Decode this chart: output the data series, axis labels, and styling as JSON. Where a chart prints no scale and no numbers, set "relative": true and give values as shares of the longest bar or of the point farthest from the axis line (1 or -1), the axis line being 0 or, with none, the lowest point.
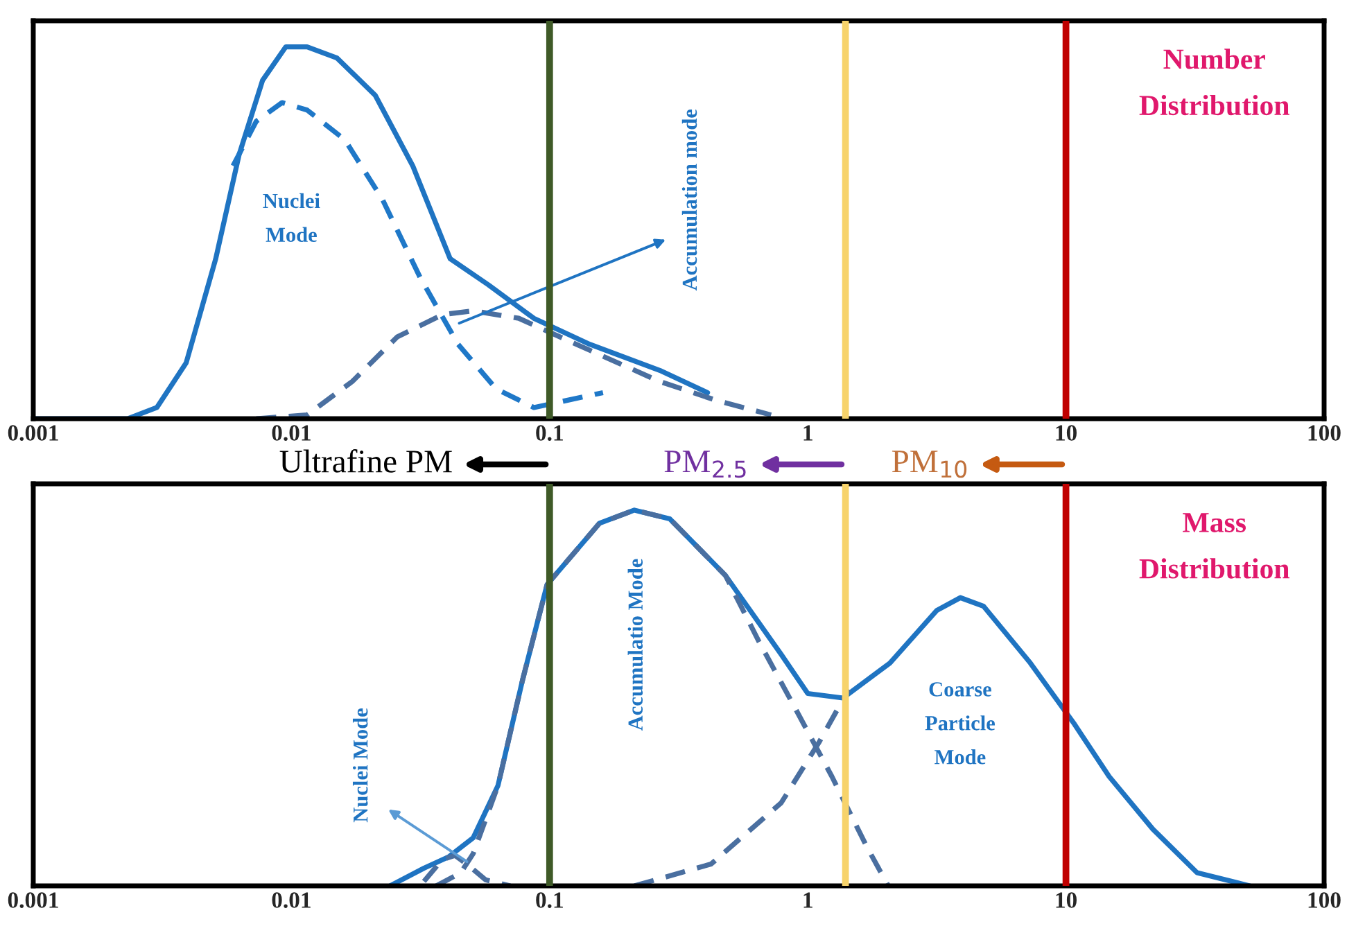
{
  "chart_data": [
    {
      "type": "line",
      "title": "Number\nDistribution",
      "relative": true,
      "xlim": [
        0.001,
        100
      ],
      "xticks": [
        0.001,
        0.01,
        0.1,
        1,
        10,
        100
      ],
      "log": "x",
      "tick_labels": "x",
      "x": [
        0.001,
        0.00232,
        0.00301,
        0.00391,
        0.00509,
        0.00627,
        0.00773,
        0.00951,
        0.0115,
        0.015,
        0.0211,
        0.0295,
        0.0412,
        0.0579,
        0.0869,
        0.143,
        0.267,
        0.409
      ],
      "series": [
        {
          "color": "#1f74c2",
          "line_style": "solid",
          "values": [
            0,
            0,
            0.03,
            0.15,
            0.43,
            0.71,
            0.91,
            1.0,
            1.0,
            0.97,
            0.87,
            0.68,
            0.43,
            0.36,
            0.27,
            0.2,
            0.13,
            0.07
          ]
        },
        {
          "color": "#1f78c8",
          "line_style": "dashed",
          "x": [
            0.00594,
            0.00731,
            0.0092,
            0.0115,
            0.0161,
            0.0225,
            0.0315,
            0.0442,
            0.0621,
            0.0869,
            0.161
          ],
          "values": [
            0.68,
            0.8,
            0.85,
            0.83,
            0.75,
            0.59,
            0.38,
            0.2,
            0.08,
            0.03,
            0.07
          ]
        },
        {
          "color": "#4a6fa0",
          "line_style": "dashed",
          "x": [
            0.00731,
            0.0115,
            0.0172,
            0.0257,
            0.0386,
            0.0506,
            0.0759,
            0.127,
            0.267,
            0.439,
            0.721
          ],
          "values": [
            0,
            0.01,
            0.1,
            0.22,
            0.28,
            0.29,
            0.27,
            0.2,
            0.1,
            0.05,
            0.01
          ]
        }
      ],
      "ref_lines": [
        {
          "axis": "x",
          "value": 0.1,
          "color": "#3f5a28"
        },
        {
          "axis": "x",
          "value": 1.4,
          "color": "#f7d36b"
        },
        {
          "axis": "x",
          "value": 10,
          "color": "#c00000"
        }
      ],
      "annotations": [
        "Nuclei\nMode",
        "Accumulation mode",
        "Ultrafine PM",
        "PM$_{2.5}$",
        "PM$_{10}$"
      ]
    },
    {
      "type": "line",
      "title": "Mass\nDistribution",
      "relative": true,
      "xlim": [
        0.001,
        100
      ],
      "xticks": [
        0.001,
        0.01,
        0.1,
        1,
        10,
        100
      ],
      "log": "x",
      "tick_labels": "x",
      "x": [
        0.0241,
        0.0326,
        0.0406,
        0.0506,
        0.0631,
        0.0785,
        0.0978,
        0.156,
        0.213,
        0.292,
        0.48,
        0.789,
        1.0,
        1.37,
        2.08,
        3.16,
        3.9,
        4.8,
        7.28,
        10.8,
        14.7,
        21.7,
        32.2,
        51.5
      ],
      "series": [
        {
          "color": "#1f74c2",
          "line_style": "solid",
          "values": [
            0,
            0.047,
            0.077,
            0.128,
            0.267,
            0.547,
            0.802,
            0.965,
            1.0,
            0.977,
            0.826,
            0.616,
            0.512,
            0.5,
            0.593,
            0.733,
            0.767,
            0.744,
            0.593,
            0.43,
            0.291,
            0.151,
            0.035,
            0
          ]
        },
        {
          "color": "#4a6fa0",
          "line_style": "dashed",
          "x": [
            0.0326,
            0.0384,
            0.043,
            0.0478,
            0.0565,
            0.0704
          ],
          "values": [
            0.012,
            0.07,
            0.081,
            0.058,
            0.016,
            0
          ]
        },
        {
          "color": "#4a6fa0",
          "line_style": "dashed",
          "x": [
            0.0364,
            0.0453,
            0.0506,
            0.0631,
            0.0785,
            0.0978,
            0.156,
            0.213,
            0.292,
            0.48,
            0.646,
            0.887,
            1.24,
            1.69,
            2.05
          ],
          "values": [
            0,
            0.035,
            0.086,
            0.267,
            0.547,
            0.802,
            0.965,
            1.0,
            0.977,
            0.826,
            0.651,
            0.477,
            0.291,
            0.105,
            0
          ]
        },
        {
          "color": "#4a6fa0",
          "line_style": "dashed",
          "x": [
            0.213,
            0.422,
            0.789,
            1.11,
            1.44
          ],
          "values": [
            0,
            0.058,
            0.221,
            0.384,
            0.523
          ]
        }
      ],
      "ref_lines": [
        {
          "axis": "x",
          "value": 0.1,
          "color": "#3f5a28"
        },
        {
          "axis": "x",
          "value": 1.4,
          "color": "#f7d36b"
        },
        {
          "axis": "x",
          "value": 10,
          "color": "#c00000"
        }
      ],
      "annotations": [
        "Accumulatio Mode",
        "Coarse\nParticle\nMode",
        "Nuclei Mode"
      ]
    }
  ]
}
